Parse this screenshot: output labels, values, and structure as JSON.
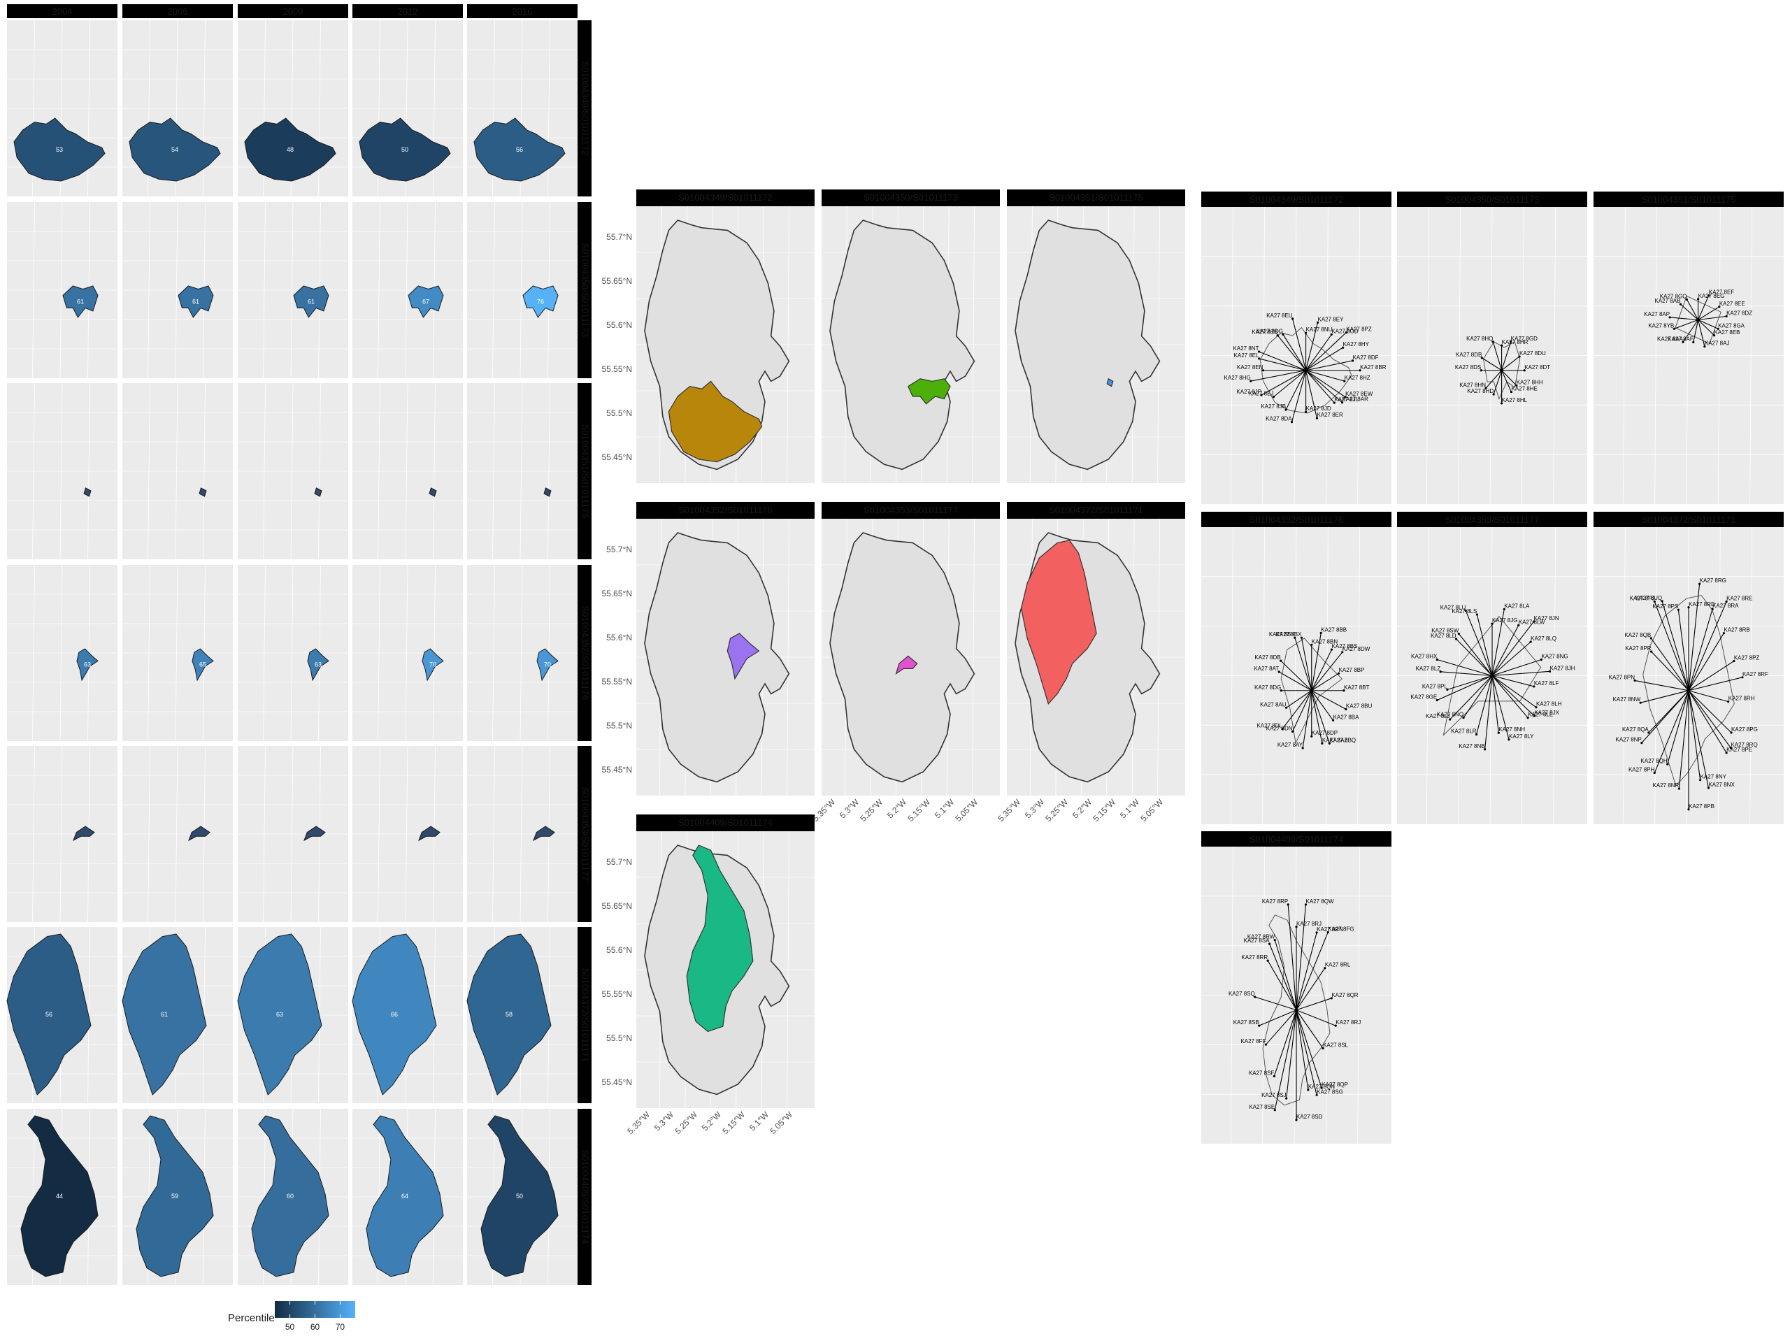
{
  "colors": {
    "panel_bg": "#ebebeb",
    "strip_bg": "#d9d9d9",
    "grid": "#ffffff",
    "island_fill": "#e0e0e0",
    "outline": "#333333",
    "gradient_low": "#132b43",
    "gradient_high": "#56b1f7"
  },
  "chart_data": [
    {
      "type": "heatmap",
      "facet_rows": [
        "S01004349/S01011172",
        "S01004350/S01011173",
        "S01004351/S01011175",
        "S01004352/S01011176",
        "S01004353/S01011177",
        "S01004372/S01011171",
        "S01004409/S01011174"
      ],
      "facet_cols": [
        "2004",
        "2006",
        "2009",
        "2012",
        "2016"
      ],
      "values": [
        [
          53,
          54,
          48,
          50,
          56
        ],
        [
          61,
          61,
          61,
          67,
          76
        ],
        [
          null,
          null,
          null,
          null,
          null
        ],
        [
          63,
          65,
          63,
          70,
          70
        ],
        [
          null,
          null,
          null,
          null,
          null
        ],
        [
          56,
          61,
          63,
          66,
          58
        ],
        [
          44,
          59,
          60,
          64,
          50
        ]
      ],
      "legend": {
        "title": "Percentile",
        "ticks": [
          50,
          60,
          70
        ],
        "position": "bottom"
      }
    },
    {
      "type": "scatter",
      "subtype": "map",
      "panels": [
        "S01004349/S01011172",
        "S01004350/S01011173",
        "S01004351/S01011175",
        "S01004352/S01011176",
        "S01004353/S01011177",
        "S01004372/S01011171",
        "S01004409/S01011174"
      ],
      "panel_fills": [
        "#b8860b",
        "#4daf0a",
        "#4a90e2",
        "#9b72f0",
        "#e052d0",
        "#f26060",
        "#1ab884"
      ],
      "ylabels": [
        "55.7°N",
        "55.65°N",
        "55.6°N",
        "55.55°N",
        "55.5°N",
        "55.45°N"
      ],
      "xlabels": [
        "5.35°W",
        "5.3°W",
        "5.25°W",
        "5.2°W",
        "5.15°W",
        "5.1°W",
        "5.05°W"
      ],
      "grid": true
    },
    {
      "type": "scatter",
      "subtype": "postcode-spider",
      "panels": [
        {
          "title": "S01004349/S01011172",
          "labels": [
            "KA27 8NU",
            "KA27 8EY",
            "KA27 8GD",
            "KA27 8PZ",
            "KA27 8HY",
            "KA27 8DF",
            "KA27 8BR",
            "KA27 8HZ",
            "KA27 8EW",
            "KA27 8AR",
            "KA27 8JL",
            "KA27 8ER",
            "KA27 8JD",
            "KA27 8DA",
            "KA27 8JB",
            "KA27 8EJ",
            "KA27 8JP",
            "KA27 8HG",
            "KA27 8EN",
            "KA27 8EL",
            "KA27 8NT",
            "KA27 8ES",
            "KA27 8DG",
            "KA27 8EU"
          ]
        },
        {
          "title": "S01004350/S01011173",
          "labels": [
            "KA27 8HR",
            "KA27 8GD",
            "KA27 8DU",
            "KA27 8DT",
            "KA27 8HH",
            "KA27 8HE",
            "KA27 8HL",
            "KA27 8HD",
            "KA27 8HN",
            "KA27 8DS",
            "KA27 8DB",
            "KA27 8HQ"
          ]
        },
        {
          "title": "S01004351/S01011175",
          "labels": [
            "KA27 8EG",
            "KA27 8EF",
            "KA27 8EE",
            "KA27 8DZ",
            "KA27 8GA",
            "KA27 8EB",
            "KA27 8AJ",
            "KA27 8AF",
            "KA27 8AA",
            "KA27 8YB",
            "KA27 8AP",
            "KA27 8AB",
            "KA27 8GQ"
          ]
        },
        {
          "title": "S01004352/S01011176",
          "labels": [
            "KA27 8BN",
            "KA27 8BB",
            "KA27 8BS",
            "KA27 8DW",
            "KA27 8BP",
            "KA27 8BT",
            "KA27 8BU",
            "KA27 8BA",
            "KA27 8BQ",
            "KA27 8AZ",
            "KA27 8DP",
            "KA27 8AY",
            "KA27 8DN",
            "KA27 8DL",
            "KA27 8AU",
            "KA27 8DG",
            "KA27 8AT",
            "KA27 8DB",
            "KA27 8BY",
            "KA27 8BX"
          ]
        },
        {
          "title": "S01004353/S01011177",
          "labels": [
            "KA27 8JG",
            "KA27 8LA",
            "KA27 8LW",
            "KA27 8JN",
            "KA27 8LQ",
            "KA27 8NG",
            "KA27 8JH",
            "KA27 8LF",
            "KA27 8LH",
            "KA27 8JX",
            "KA27 8LE",
            "KA27 8LY",
            "KA27 8NH",
            "KA27 8NB",
            "KA27 8LR",
            "KA27 8NQ",
            "KA27 8LJ",
            "KA27 8GE",
            "KA27 8PL",
            "KA27 8LZ",
            "KA27 8HX",
            "KA27 8LD",
            "KA27 8SW",
            "KA27 8LU",
            "KA27 8LS"
          ]
        },
        {
          "title": "S01004372/S01011171",
          "labels": [
            "KA27 8RD",
            "KA27 8RG",
            "KA27 8RA",
            "KA27 8RE",
            "KA27 8RB",
            "KA27 8PZ",
            "KA27 8RF",
            "KA27 8RH",
            "KA27 8PG",
            "KA27 8RQ",
            "KA27 8PE",
            "KA27 8NX",
            "KA27 8NY",
            "KA27 8PB",
            "KA27 8NR",
            "KA27 8QH",
            "KA27 8PH",
            "KA27 8NP",
            "KA27 8QA",
            "KA27 8NW",
            "KA27 8PN",
            "KA27 8PR",
            "KA27 8QB",
            "KA27 8PJ",
            "KA27 8UQ",
            "KA27 8PS"
          ]
        },
        {
          "title": "S01004409/S01011174",
          "labels": [
            "KA27 8RJ",
            "KA27 8QW",
            "KA27 8RN",
            "KA27 8FG",
            "KA27 8RL",
            "KA27 8QR",
            "KA27 8RJ",
            "KA27 8SL",
            "KA27 8QP",
            "KA27 8SG",
            "KA27 8QN",
            "KA27 8SD",
            "KA27 8SJ",
            "KA27 8SE",
            "KA27 8SF",
            "KA27 8FF",
            "KA27 8SB",
            "KA27 8SQ",
            "KA27 8RR",
            "KA27 8SA",
            "KA27 8RW",
            "KA27 8RP"
          ]
        }
      ]
    }
  ]
}
